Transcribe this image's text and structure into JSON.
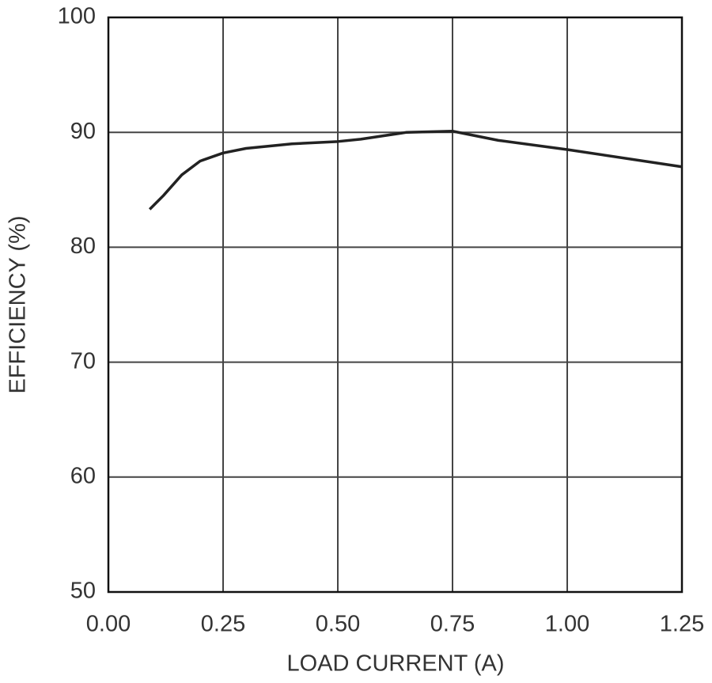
{
  "chart_data": {
    "type": "line",
    "x_label": "LOAD CURRENT (A)",
    "y_label": "EFFICIENCY (%)",
    "xlim": [
      0,
      1.25
    ],
    "ylim": [
      50,
      100
    ],
    "xticks": [
      {
        "value": 0,
        "label": "0.00"
      },
      0.25,
      {
        "value": 0.5,
        "label": "0.50"
      },
      0.75,
      {
        "value": 1,
        "label": "1.00"
      },
      1.25
    ],
    "yticks": [
      50,
      60,
      70,
      80,
      90,
      100
    ],
    "grid": true,
    "x": [
      0.09,
      0.12,
      0.16,
      0.2,
      0.25,
      0.3,
      0.4,
      0.5,
      0.55,
      0.65,
      0.75,
      0.85,
      1.0,
      1.25
    ],
    "series": [
      {
        "color": "#222222",
        "values": [
          83.3,
          84.5,
          86.3,
          87.5,
          88.2,
          88.6,
          89.0,
          89.2,
          89.4,
          90.0,
          90.1,
          89.3,
          88.5,
          87.0
        ]
      }
    ]
  }
}
